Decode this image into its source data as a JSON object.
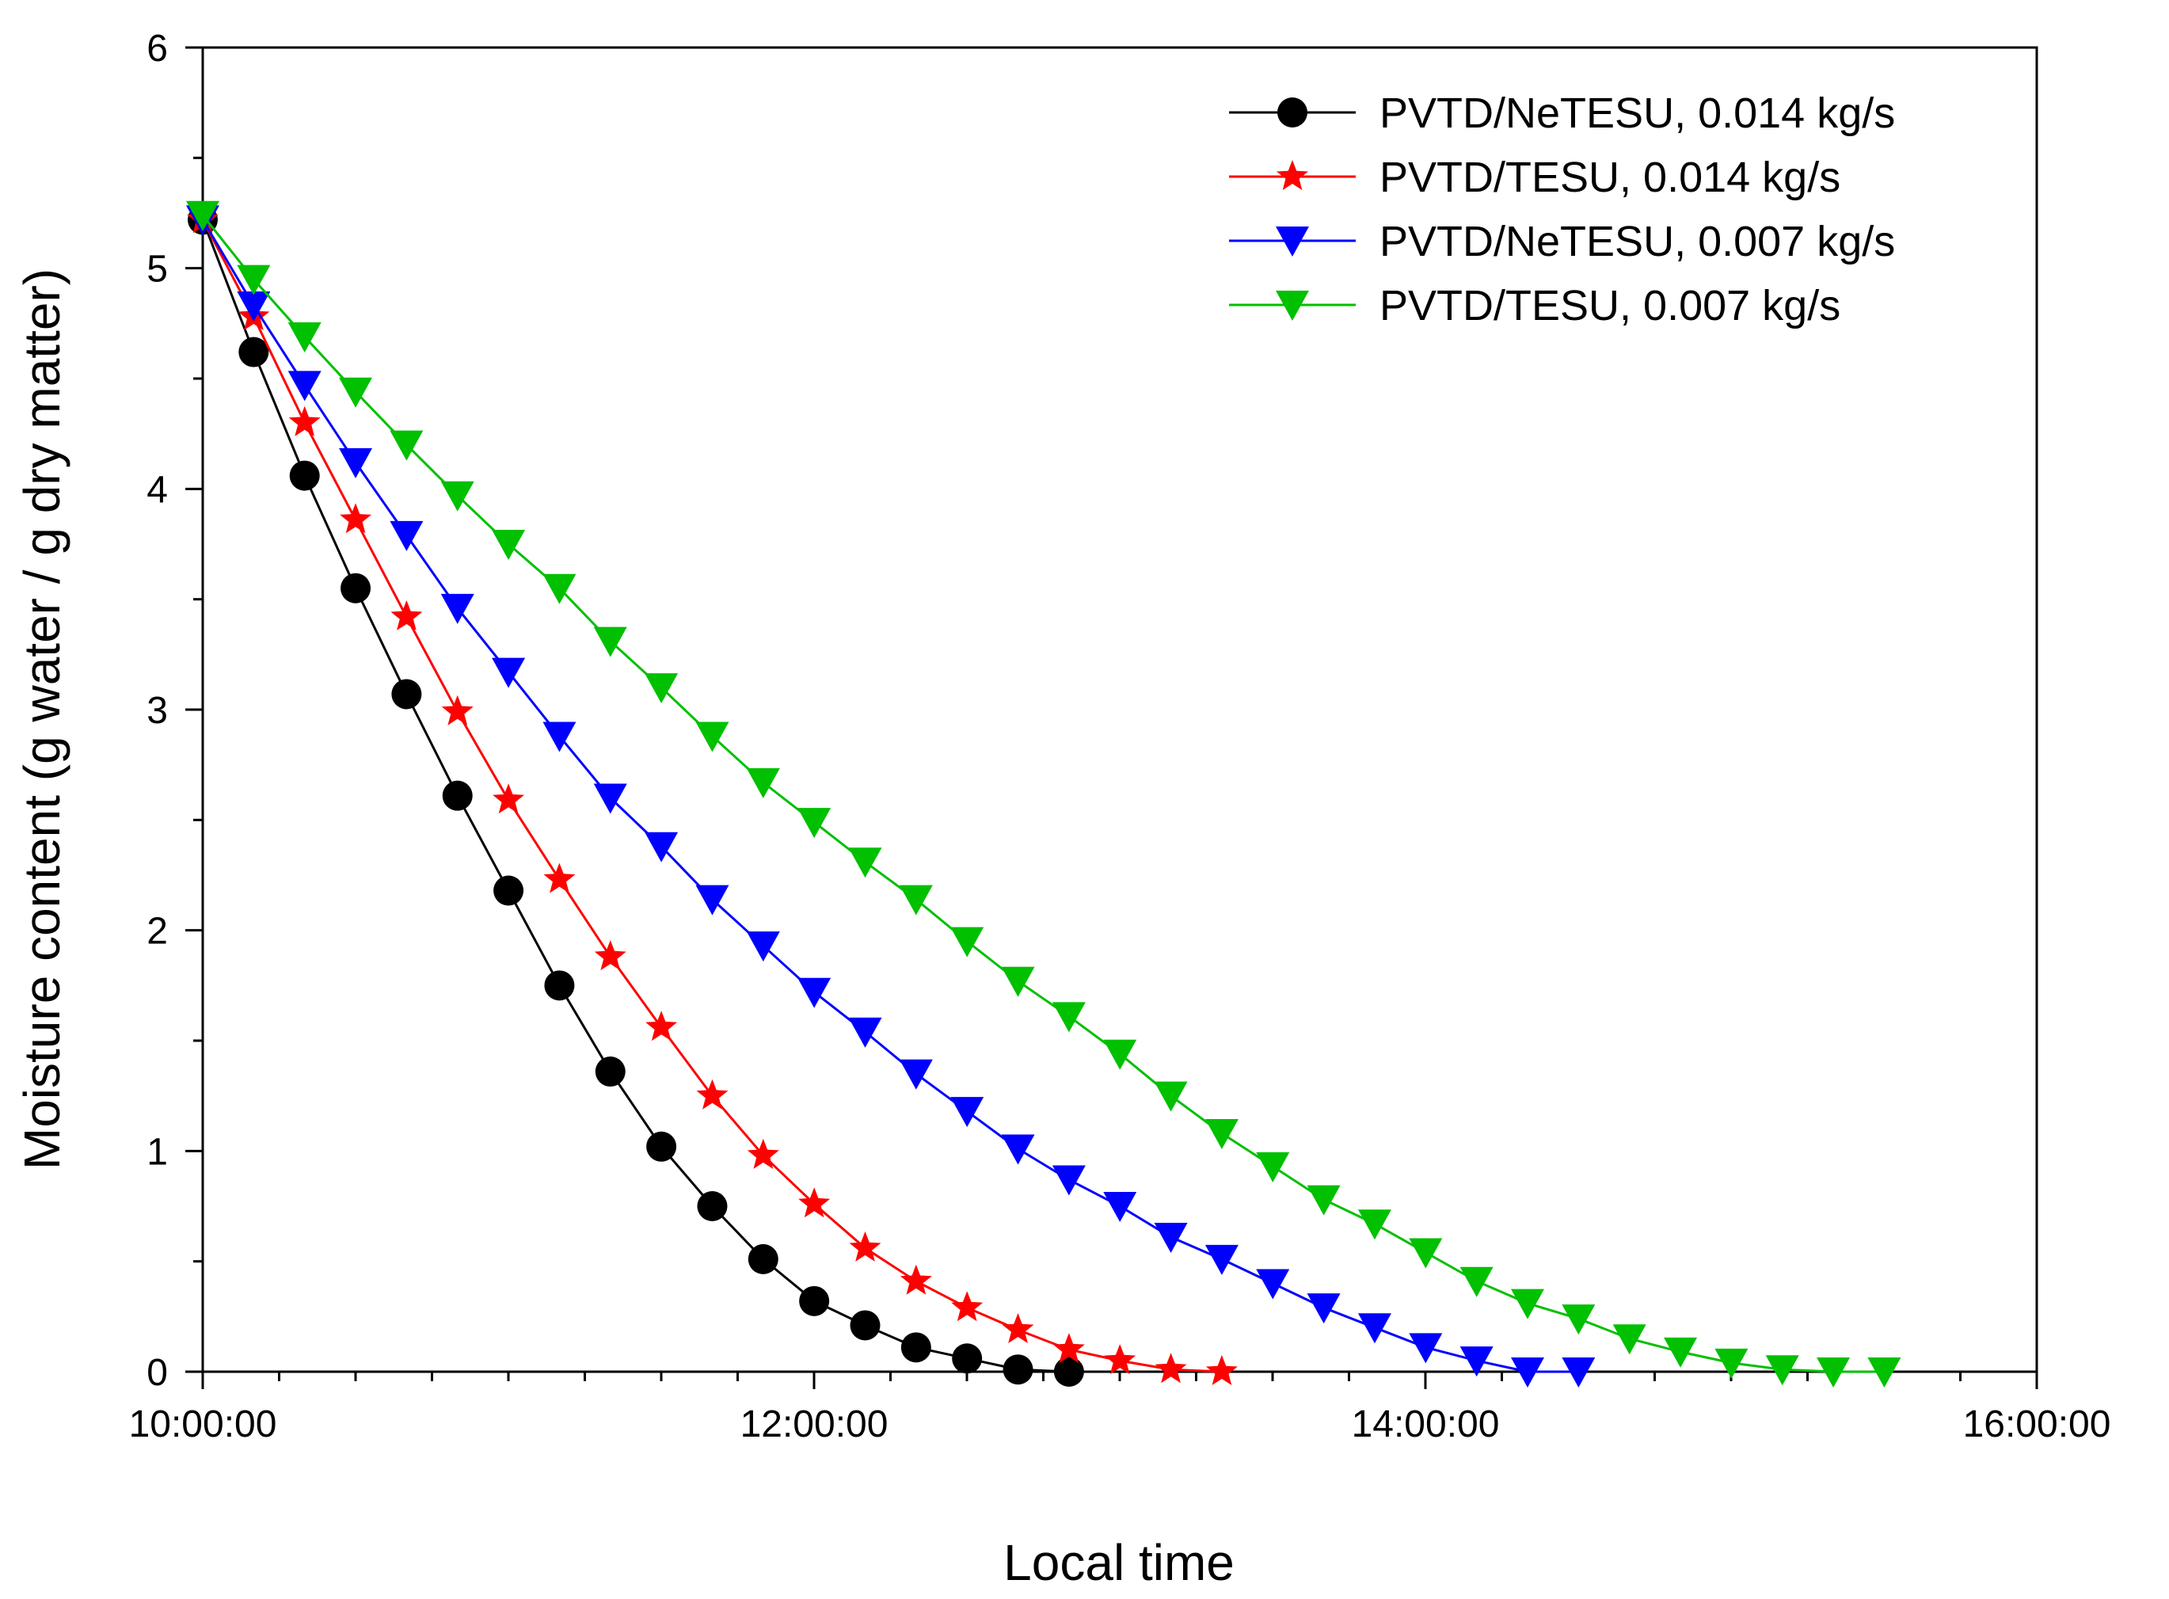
{
  "chart_data": {
    "type": "line",
    "title": "",
    "xlabel": "Local time",
    "ylabel": "Moisture content (g water / g dry matter)",
    "x_unit": "hours",
    "xlim": [
      10,
      16
    ],
    "ylim": [
      0,
      6
    ],
    "x_tick_values": [
      10,
      12,
      14,
      16
    ],
    "x_tick_labels": [
      "10:00:00",
      "12:00:00",
      "14:00:00",
      "16:00:00"
    ],
    "y_tick_values": [
      0,
      1,
      2,
      3,
      4,
      5,
      6
    ],
    "y_tick_labels": [
      "0",
      "1",
      "2",
      "3",
      "4",
      "5",
      "6"
    ],
    "legend_position": "top-right",
    "grid": false,
    "series": [
      {
        "name": "PVTD/NeTESU, 0.014 kg/s",
        "color": "#000000",
        "marker": "circle",
        "x_start": 10,
        "x_step": 0.1667,
        "values": [
          5.22,
          4.62,
          4.06,
          3.55,
          3.07,
          2.61,
          2.18,
          1.75,
          1.36,
          1.02,
          0.75,
          0.51,
          0.32,
          0.21,
          0.11,
          0.06,
          0.01,
          0.0
        ]
      },
      {
        "name": "PVTD/TESU, 0.014 kg/s",
        "color": "#ff0000",
        "marker": "star",
        "x_start": 10,
        "x_step": 0.1667,
        "values": [
          5.22,
          4.78,
          4.3,
          3.86,
          3.42,
          2.99,
          2.59,
          2.23,
          1.88,
          1.56,
          1.25,
          0.98,
          0.76,
          0.56,
          0.41,
          0.29,
          0.19,
          0.1,
          0.05,
          0.01,
          0.0
        ]
      },
      {
        "name": "PVTD/NeTESU, 0.007 kg/s",
        "color": "#0000ff",
        "marker": "triangle-down",
        "x_start": 10,
        "x_step": 0.1667,
        "values": [
          5.22,
          4.83,
          4.47,
          4.12,
          3.79,
          3.46,
          3.17,
          2.88,
          2.6,
          2.38,
          2.14,
          1.93,
          1.72,
          1.54,
          1.35,
          1.18,
          1.01,
          0.87,
          0.75,
          0.61,
          0.51,
          0.4,
          0.29,
          0.2,
          0.11,
          0.05,
          0.0,
          0.0
        ]
      },
      {
        "name": "PVTD/TESU, 0.007 kg/s",
        "color": "#00c000",
        "marker": "triangle-down",
        "x_start": 10,
        "x_step": 0.1667,
        "values": [
          5.24,
          4.95,
          4.69,
          4.44,
          4.2,
          3.97,
          3.75,
          3.55,
          3.31,
          3.1,
          2.88,
          2.67,
          2.49,
          2.31,
          2.14,
          1.95,
          1.77,
          1.61,
          1.44,
          1.25,
          1.08,
          0.93,
          0.78,
          0.67,
          0.54,
          0.41,
          0.31,
          0.24,
          0.15,
          0.09,
          0.04,
          0.01,
          0.0,
          0.0
        ]
      }
    ]
  }
}
